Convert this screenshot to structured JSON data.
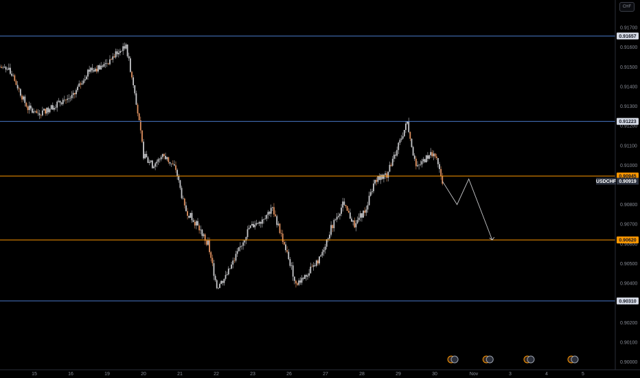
{
  "currency_label": "CHF",
  "symbol": "USDCHF",
  "colors": {
    "background": "#000000",
    "blue_level": "#4a79c9",
    "orange_level": "#ff9800",
    "candle": "#c8c9cc",
    "bear_accent": "#e0915f",
    "projection": "#c8c9cc",
    "axis_text": "#8a8e98"
  },
  "chart_data": {
    "type": "candlestick",
    "x_ticks": [
      "15",
      "16",
      "19",
      "20",
      "21",
      "22",
      "23",
      "26",
      "27",
      "28",
      "29",
      "30",
      "Nov",
      "3",
      "4",
      "5"
    ],
    "y_ticks": [
      "0.91700",
      "0.91600",
      "0.91500",
      "0.91400",
      "0.91300",
      "0.91200",
      "0.91100",
      "0.91000",
      "0.90800",
      "0.90700",
      "0.90600",
      "0.90500",
      "0.90400",
      "0.90300",
      "0.90200",
      "0.90100",
      "0.90000"
    ],
    "ylim": [
      0.8996,
      0.9184
    ],
    "levels": [
      {
        "price": 0.91657,
        "label": "0.91657",
        "kind": "support-resistance"
      },
      {
        "price": 0.91223,
        "label": "0.91223",
        "kind": "support-resistance"
      },
      {
        "price": 0.90945,
        "label": "0.90945",
        "kind": "target-zone"
      },
      {
        "price": 0.9062,
        "label": "0.90620",
        "kind": "target-zone"
      },
      {
        "price": 0.9031,
        "label": "0.90310",
        "kind": "support-resistance"
      }
    ],
    "last_price": {
      "label": "USDCHF",
      "value": "0.90919",
      "price": 0.90919
    },
    "price_path": [
      {
        "t": 0,
        "p": 0.915
      },
      {
        "t": 3,
        "p": 0.9148
      },
      {
        "t": 6,
        "p": 0.914
      },
      {
        "t": 9,
        "p": 0.913
      },
      {
        "t": 12,
        "p": 0.9126
      },
      {
        "t": 16,
        "p": 0.9128
      },
      {
        "t": 20,
        "p": 0.9132
      },
      {
        "t": 25,
        "p": 0.9135
      },
      {
        "t": 30,
        "p": 0.9148
      },
      {
        "t": 35,
        "p": 0.915
      },
      {
        "t": 40,
        "p": 0.9157
      },
      {
        "t": 43,
        "p": 0.916
      },
      {
        "t": 46,
        "p": 0.9138
      },
      {
        "t": 49,
        "p": 0.9105
      },
      {
        "t": 52,
        "p": 0.91
      },
      {
        "t": 56,
        "p": 0.9105
      },
      {
        "t": 60,
        "p": 0.9098
      },
      {
        "t": 63,
        "p": 0.9078
      },
      {
        "t": 67,
        "p": 0.907
      },
      {
        "t": 71,
        "p": 0.906
      },
      {
        "t": 74,
        "p": 0.9038
      },
      {
        "t": 77,
        "p": 0.9043
      },
      {
        "t": 81,
        "p": 0.9055
      },
      {
        "t": 85,
        "p": 0.9068
      },
      {
        "t": 89,
        "p": 0.9072
      },
      {
        "t": 93,
        "p": 0.9078
      },
      {
        "t": 97,
        "p": 0.906
      },
      {
        "t": 101,
        "p": 0.904
      },
      {
        "t": 105,
        "p": 0.9045
      },
      {
        "t": 109,
        "p": 0.9052
      },
      {
        "t": 113,
        "p": 0.9068
      },
      {
        "t": 117,
        "p": 0.908
      },
      {
        "t": 121,
        "p": 0.907
      },
      {
        "t": 125,
        "p": 0.9078
      },
      {
        "t": 128,
        "p": 0.9093
      },
      {
        "t": 132,
        "p": 0.9095
      },
      {
        "t": 136,
        "p": 0.911
      },
      {
        "t": 139,
        "p": 0.9122
      },
      {
        "t": 142,
        "p": 0.9098
      },
      {
        "t": 145,
        "p": 0.9103
      },
      {
        "t": 148,
        "p": 0.9107
      },
      {
        "t": 151,
        "p": 0.9092
      }
    ],
    "projection": [
      {
        "t": 151,
        "p": 0.90919
      },
      {
        "t": 156,
        "p": 0.908
      },
      {
        "t": 160,
        "p": 0.9093
      },
      {
        "t": 168,
        "p": 0.9062
      }
    ],
    "t_range": [
      0,
      210
    ],
    "events": [
      {
        "t": 154,
        "label": "calendar events"
      },
      {
        "t": 166,
        "label": "calendar events"
      },
      {
        "t": 180,
        "label": "calendar events"
      },
      {
        "t": 195,
        "label": "calendar events"
      }
    ]
  }
}
